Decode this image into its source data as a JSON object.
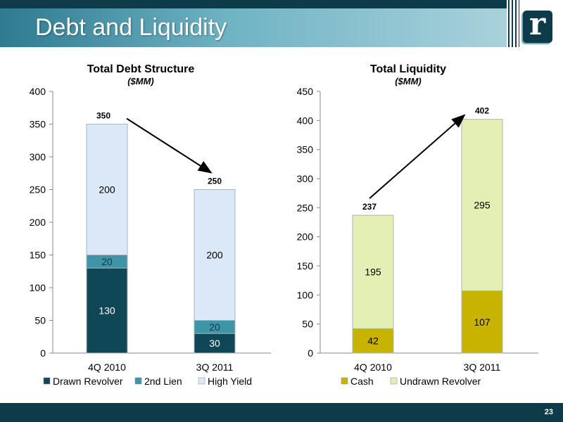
{
  "header": {
    "title": "Debt and Liquidity",
    "logo_icon": "r-logo-icon"
  },
  "footer": {
    "page_number": "23"
  },
  "colors": {
    "dark_teal": "#0e3b4a",
    "drawn_revolver": "#0f4757",
    "second_lien": "#3f95a8",
    "high_yield": "#dbe8f7",
    "cash": "#c8b400",
    "undrawn_revolver": "#e4efb4"
  },
  "chart_data": [
    {
      "type": "bar",
      "stacked": true,
      "title": "Total Debt Structure",
      "subtitle": "($MM)",
      "categories": [
        "4Q 2010",
        "3Q 2011"
      ],
      "series": [
        {
          "name": "Drawn Revolver",
          "values": [
            130,
            30
          ]
        },
        {
          "name": "2nd Lien",
          "values": [
            20,
            20
          ]
        },
        {
          "name": "High Yield",
          "values": [
            200,
            200
          ]
        }
      ],
      "totals": [
        350,
        250
      ],
      "ylim": [
        0,
        400
      ],
      "yticks": [
        0,
        50,
        100,
        150,
        200,
        250,
        300,
        350,
        400
      ],
      "legend": "bottom",
      "annotation": "arrow-down from 4Q 2010 total to 3Q 2011 total"
    },
    {
      "type": "bar",
      "stacked": true,
      "title": "Total Liquidity",
      "subtitle": "($MM)",
      "categories": [
        "4Q 2010",
        "3Q 2011"
      ],
      "series": [
        {
          "name": "Cash",
          "values": [
            42,
            107
          ]
        },
        {
          "name": "Undrawn Revolver",
          "values": [
            195,
            295
          ]
        }
      ],
      "totals": [
        237,
        402
      ],
      "ylim": [
        0,
        450
      ],
      "yticks": [
        0,
        50,
        100,
        150,
        200,
        250,
        300,
        350,
        400,
        450
      ],
      "legend": "bottom",
      "annotation": "arrow-up from 4Q 2010 total to 3Q 2011 total"
    }
  ]
}
